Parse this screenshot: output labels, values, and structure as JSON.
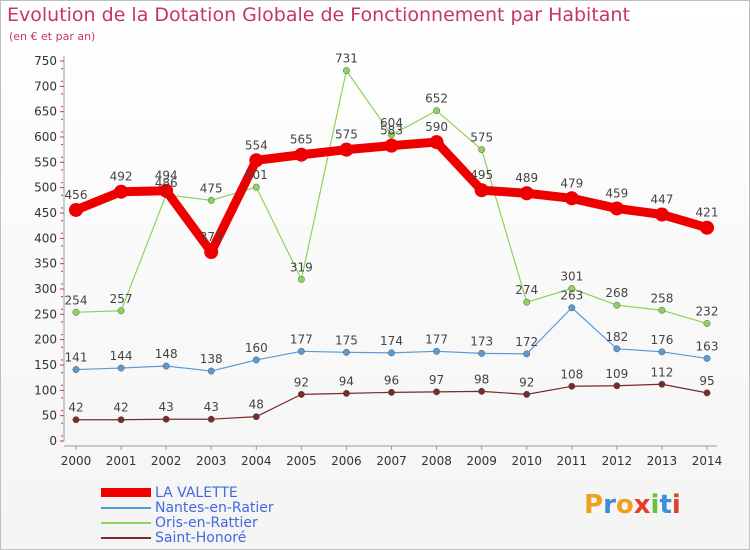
{
  "header": {
    "title": "Evolution de la Dotation Globale de Fonctionnement par Habitant",
    "subtitle": "(en € et par an)"
  },
  "logo": {
    "text": "Proxiti"
  },
  "chart_data": {
    "type": "line",
    "title": "Evolution de la Dotation Globale de Fonctionnement par Habitant",
    "subtitle": "(en € et par an)",
    "x": [
      "2000",
      "2001",
      "2002",
      "2003",
      "2004",
      "2005",
      "2006",
      "2007",
      "2008",
      "2009",
      "2010",
      "2011",
      "2012",
      "2013",
      "2014"
    ],
    "ylim": [
      0,
      750
    ],
    "yticks": [
      0,
      50,
      100,
      150,
      200,
      250,
      300,
      350,
      400,
      450,
      500,
      550,
      600,
      650,
      700,
      750
    ],
    "grid": false,
    "legend_position": "bottom-left",
    "series": [
      {
        "name": "LA VALETTE",
        "color": "#ee0000",
        "values": [
          456,
          492,
          494,
          373,
          554,
          565,
          575,
          583,
          590,
          495,
          489,
          479,
          459,
          447,
          421
        ],
        "labels": [
          "456",
          "492",
          "494",
          "373",
          "554",
          "565",
          "575",
          "583",
          "590",
          "495",
          "489",
          "479",
          "459",
          "447",
          "421"
        ]
      },
      {
        "name": "Nantes-en-Ratier",
        "color": "#5b9bd5",
        "values": [
          141,
          144,
          148,
          138,
          160,
          177,
          175,
          174,
          177,
          173,
          172,
          263,
          182,
          176,
          163
        ],
        "labels": [
          "141",
          "144",
          "148",
          "138",
          "160",
          "177",
          "175",
          "174",
          "177",
          "173",
          "172",
          "263",
          "182",
          "176",
          "163"
        ]
      },
      {
        "name": "Oris-en-Rattier",
        "color": "#8ed35a",
        "values": [
          254,
          257,
          486,
          475,
          501,
          319,
          731,
          604,
          652,
          575,
          274,
          301,
          268,
          258,
          232
        ],
        "labels": [
          "254",
          "257",
          "486",
          "475",
          "501",
          "319",
          "731",
          "604",
          "652",
          "575",
          "274",
          "301",
          "268",
          "258",
          "232"
        ]
      },
      {
        "name": "Saint-Honoré",
        "color": "#7a2a2a",
        "values": [
          42,
          42,
          43,
          43,
          48,
          92,
          94,
          96,
          97,
          98,
          92,
          108,
          109,
          112,
          95
        ],
        "labels": [
          "42",
          "42",
          "43",
          "43",
          "48",
          "92",
          "94",
          "96",
          "97",
          "98",
          "92",
          "108",
          "109",
          "112",
          "95"
        ]
      }
    ]
  }
}
